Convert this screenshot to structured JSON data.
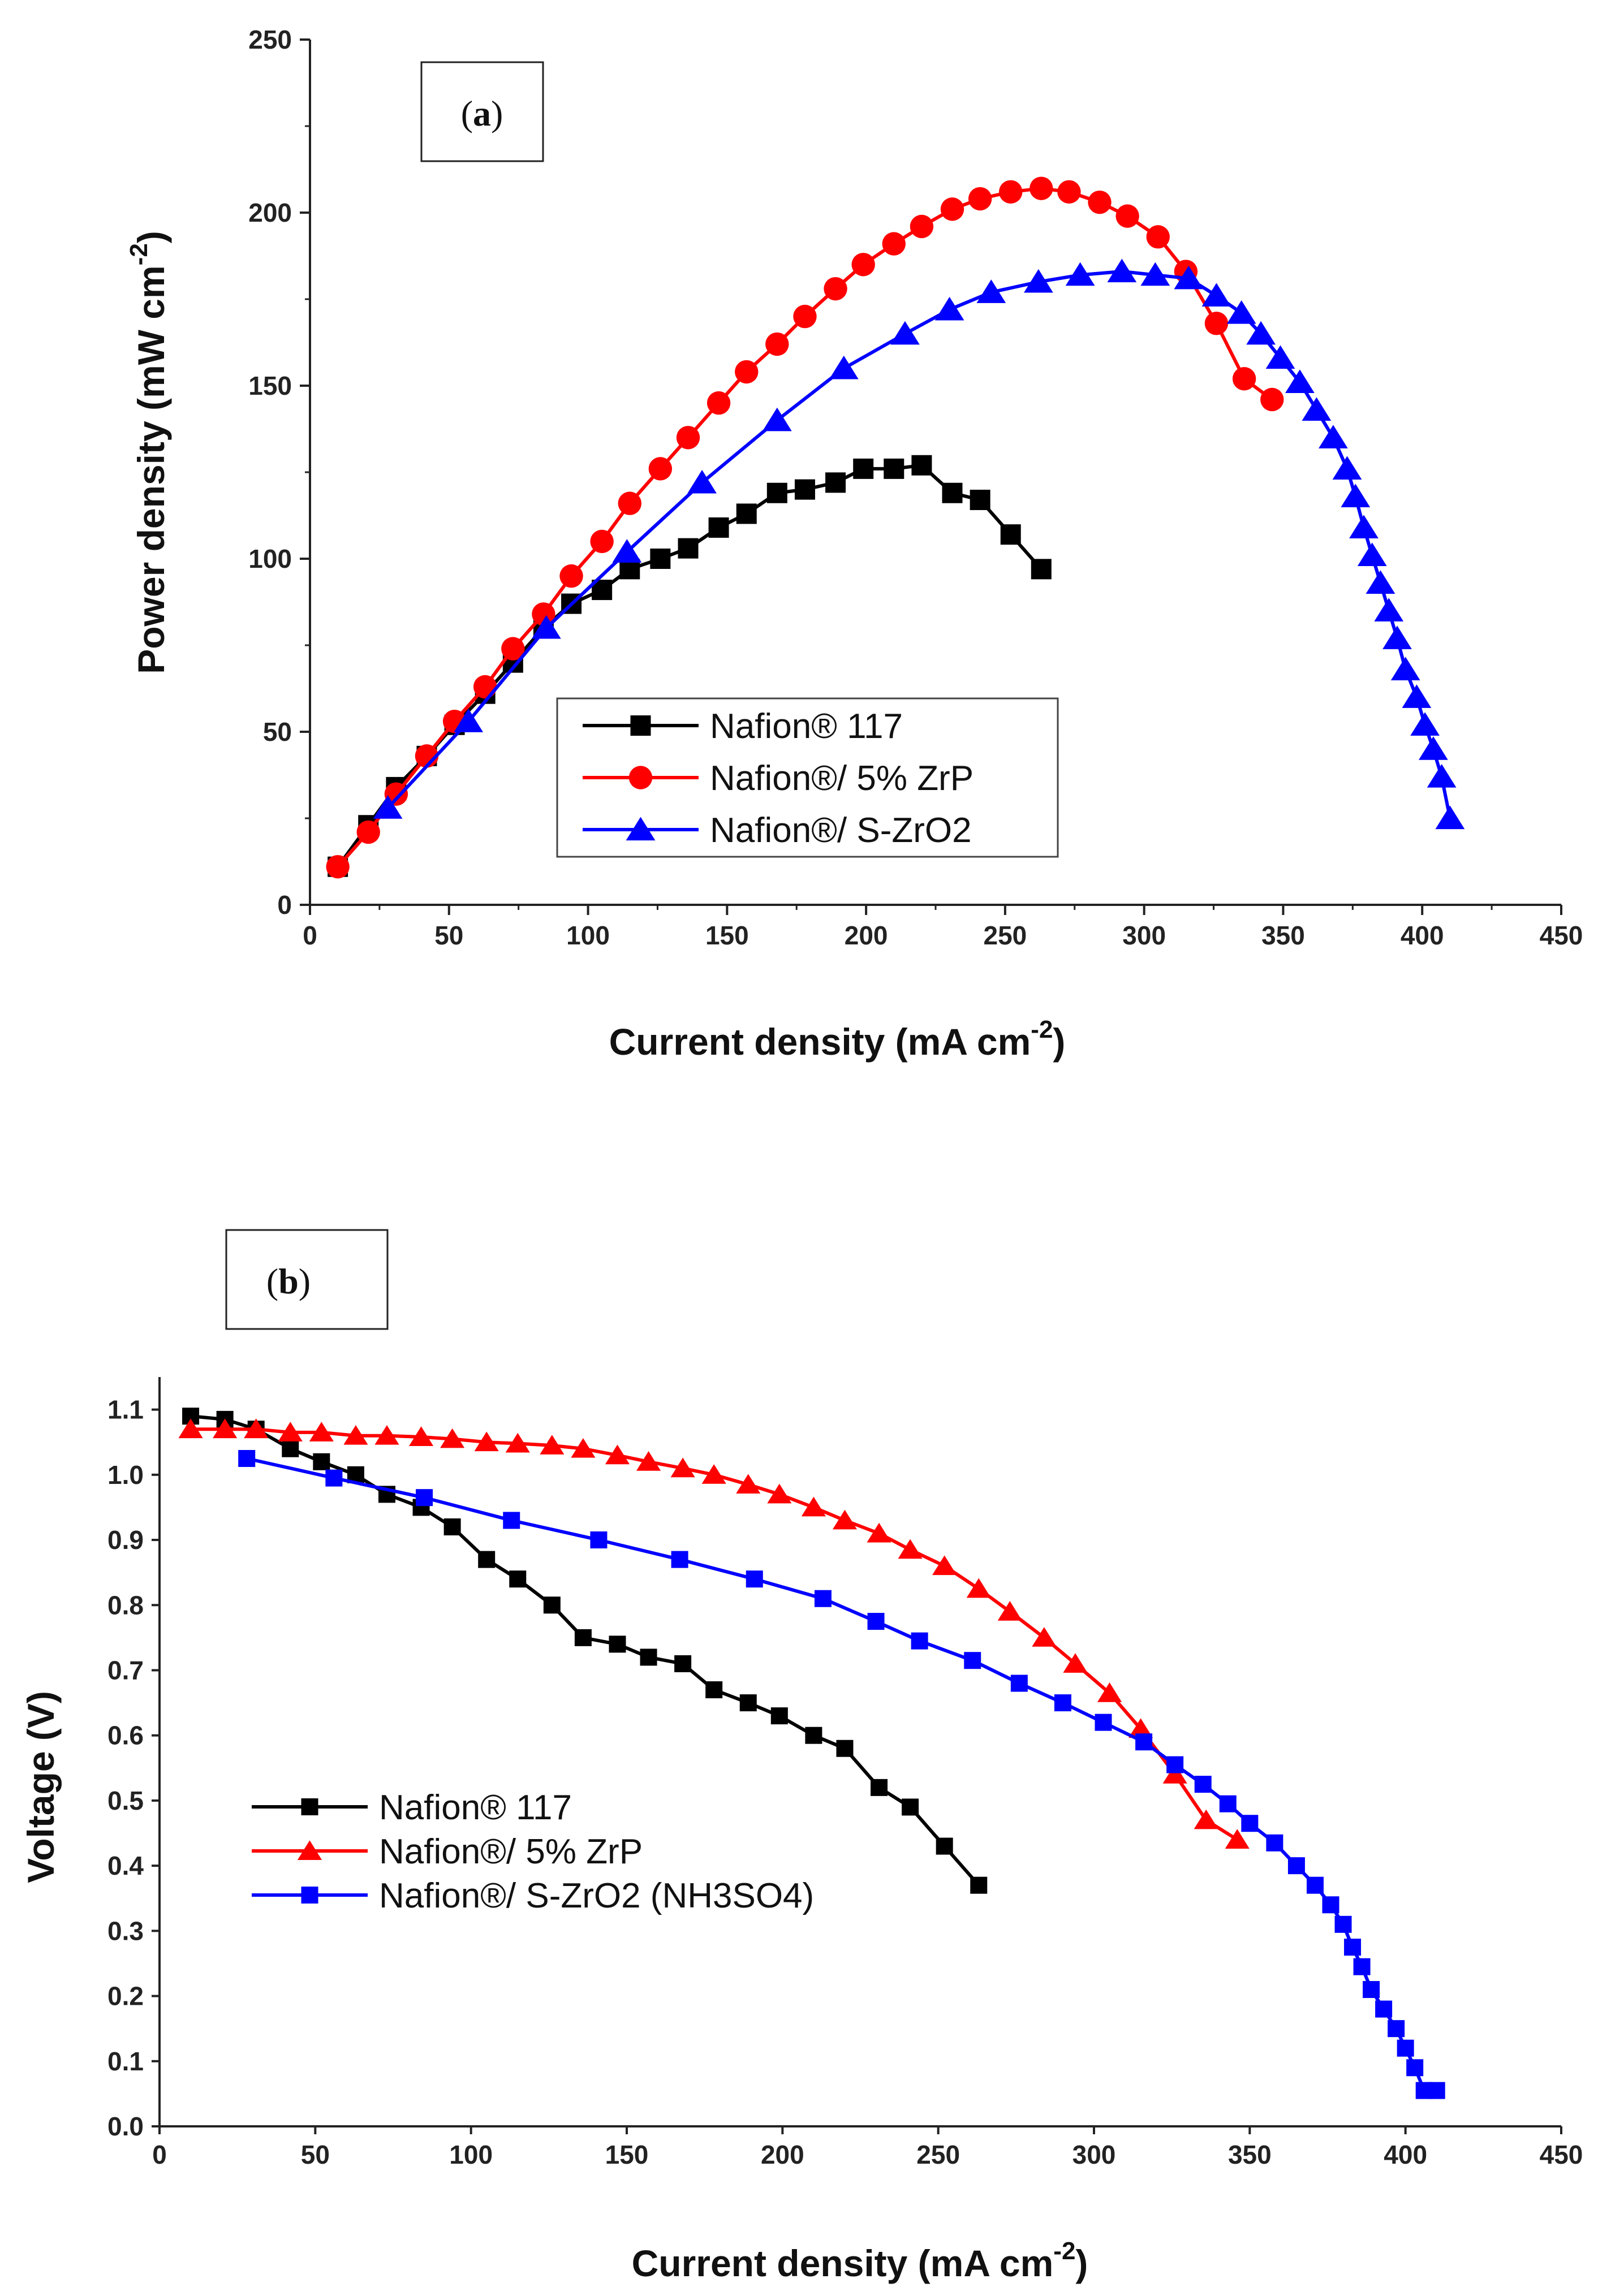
{
  "chart_data": [
    {
      "panel": "a",
      "panel_label": "a",
      "type": "line",
      "xlabel": "Current density (mA cm",
      "xlabel_sup": "-2",
      "ylabel": "Power density (mW cm",
      "ylabel_sup": "-2",
      "xlim": [
        0,
        450
      ],
      "ylim": [
        0,
        250
      ],
      "xticks": [
        0,
        50,
        100,
        150,
        200,
        250,
        300,
        350,
        400,
        450
      ],
      "yticks": [
        0,
        50,
        100,
        150,
        200,
        250
      ],
      "legend": "center",
      "series": [
        {
          "name": "Nafion® 117",
          "color": "#000000",
          "marker": "square",
          "x": [
            10,
            21,
            31,
            42,
            52,
            63,
            73,
            84,
            94,
            105,
            115,
            126,
            136,
            147,
            157,
            168,
            178,
            189,
            199,
            210,
            220,
            231,
            241,
            252,
            263
          ],
          "y": [
            11,
            23,
            34,
            43,
            52,
            61,
            70,
            80,
            87,
            91,
            97,
            100,
            103,
            109,
            113,
            119,
            120,
            122,
            126,
            126,
            127,
            119,
            117,
            107,
            97
          ]
        },
        {
          "name": "Nafion®/ 5% ZrP",
          "color": "#ff0000",
          "marker": "circle",
          "x": [
            10,
            21,
            31,
            42,
            52,
            63,
            73,
            84,
            94,
            105,
            115,
            126,
            136,
            147,
            157,
            168,
            178,
            189,
            199,
            210,
            220,
            231,
            241,
            252,
            263,
            273,
            284,
            294,
            305,
            315,
            326,
            336,
            346
          ],
          "y": [
            11,
            21,
            32,
            43,
            53,
            63,
            74,
            84,
            95,
            105,
            116,
            126,
            135,
            145,
            154,
            162,
            170,
            178,
            185,
            191,
            196,
            201,
            204,
            206,
            207,
            206,
            203,
            199,
            193,
            183,
            168,
            152,
            146
          ]
        },
        {
          "name": "Nafion®/ S-ZrO2",
          "color": "#0000ff",
          "marker": "triangle",
          "x": [
            28,
            57,
            85,
            114,
            141,
            168,
            192,
            214,
            230,
            245,
            262,
            277,
            292,
            304,
            316,
            326,
            335,
            342,
            349,
            356,
            362,
            368,
            373,
            376,
            379,
            382,
            385,
            388,
            391,
            394,
            398,
            401,
            404,
            407,
            410
          ],
          "y": [
            28,
            53,
            80,
            102,
            122,
            140,
            155,
            165,
            172,
            177,
            180,
            182,
            183,
            182,
            181,
            176,
            171,
            165,
            158,
            151,
            143,
            135,
            126,
            118,
            109,
            101,
            93,
            85,
            77,
            68,
            60,
            52,
            45,
            37,
            25
          ]
        }
      ]
    },
    {
      "panel": "b",
      "panel_label": "b",
      "type": "line",
      "xlabel": "Current density (mA cm",
      "xlabel_sup": "-2",
      "ylabel": "Voltage (V)",
      "xlim": [
        0,
        450
      ],
      "ylim": [
        0,
        1.15
      ],
      "xticks": [
        0,
        50,
        100,
        150,
        200,
        250,
        300,
        350,
        400,
        450
      ],
      "yticks": [
        0.0,
        0.1,
        0.2,
        0.3,
        0.4,
        0.5,
        0.6,
        0.7,
        0.8,
        0.9,
        1.0,
        1.1
      ],
      "legend": "lower-left",
      "series": [
        {
          "name": "Nafion® 117",
          "color": "#000000",
          "marker": "square",
          "x": [
            10,
            21,
            31,
            42,
            52,
            63,
            73,
            84,
            94,
            105,
            115,
            126,
            136,
            147,
            157,
            168,
            178,
            189,
            199,
            210,
            220,
            231,
            241,
            252,
            263
          ],
          "y": [
            1.09,
            1.085,
            1.07,
            1.04,
            1.02,
            1.0,
            0.97,
            0.95,
            0.92,
            0.87,
            0.84,
            0.8,
            0.75,
            0.74,
            0.72,
            0.71,
            0.67,
            0.65,
            0.63,
            0.6,
            0.58,
            0.52,
            0.49,
            0.43,
            0.37
          ]
        },
        {
          "name": "Nafion®/ 5% ZrP",
          "color": "#ff0000",
          "marker": "triangle",
          "x": [
            10,
            21,
            31,
            42,
            52,
            63,
            73,
            84,
            94,
            105,
            115,
            126,
            136,
            147,
            157,
            168,
            178,
            189,
            199,
            210,
            220,
            231,
            241,
            252,
            263,
            273,
            284,
            294,
            305,
            315,
            326,
            336,
            346
          ],
          "y": [
            1.07,
            1.07,
            1.07,
            1.065,
            1.065,
            1.06,
            1.06,
            1.058,
            1.055,
            1.05,
            1.048,
            1.045,
            1.04,
            1.03,
            1.02,
            1.01,
            1.0,
            0.985,
            0.97,
            0.95,
            0.93,
            0.91,
            0.885,
            0.86,
            0.825,
            0.79,
            0.75,
            0.71,
            0.665,
            0.61,
            0.54,
            0.47,
            0.44
          ]
        },
        {
          "name": "Nafion®/ S-ZrO2 (NH3SO4)",
          "color": "#0000ff",
          "marker": "square",
          "x": [
            28,
            56,
            85,
            113,
            141,
            167,
            191,
            213,
            230,
            244,
            261,
            276,
            290,
            303,
            316,
            326,
            335,
            343,
            350,
            358,
            365,
            371,
            376,
            380,
            383,
            386,
            389,
            393,
            397,
            400,
            403,
            406,
            410
          ],
          "y": [
            1.025,
            0.995,
            0.965,
            0.93,
            0.9,
            0.87,
            0.84,
            0.81,
            0.775,
            0.745,
            0.715,
            0.68,
            0.65,
            0.62,
            0.59,
            0.555,
            0.525,
            0.495,
            0.465,
            0.435,
            0.4,
            0.37,
            0.34,
            0.31,
            0.275,
            0.245,
            0.21,
            0.18,
            0.15,
            0.12,
            0.09,
            0.055,
            0.055
          ]
        }
      ]
    }
  ]
}
